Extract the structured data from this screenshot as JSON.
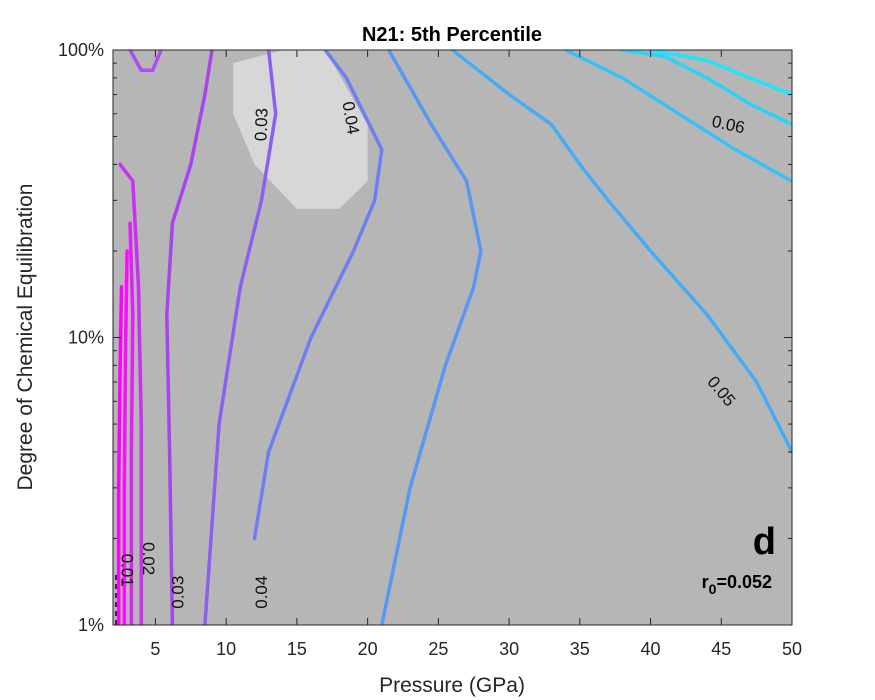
{
  "chart_data": {
    "type": "contour",
    "title": "N21: 5th Percentile",
    "xlabel": "Pressure (GPa)",
    "ylabel": "Degree of Chemical Equilibration",
    "xlim": [
      2,
      50
    ],
    "ylim": [
      1,
      100
    ],
    "yscale": "log",
    "xticks": [
      5,
      10,
      15,
      20,
      25,
      30,
      35,
      40,
      45,
      50
    ],
    "xtick_labels": [
      "5",
      "10",
      "15",
      "20",
      "25",
      "30",
      "35",
      "40",
      "45",
      "50"
    ],
    "yticks": [
      1,
      10,
      100
    ],
    "ytick_labels": [
      "1%",
      "10%",
      "100%"
    ],
    "panel_letter": "d",
    "r0_prefix": "r",
    "r0_sub": "0",
    "r0_value": "=0.052",
    "background_color": "#b6b6b6",
    "highlight_color": "#d7d7d7",
    "highlight_region": [
      [
        10.5,
        90
      ],
      [
        14,
        100
      ],
      [
        17,
        100
      ],
      [
        20,
        55
      ],
      [
        20,
        35
      ],
      [
        18,
        28
      ],
      [
        15,
        28
      ],
      [
        12,
        40
      ],
      [
        10.5,
        60
      ]
    ],
    "contours": [
      {
        "level": "0.01",
        "color": "#ff00ff",
        "points": [
          [
            2.4,
            1
          ],
          [
            2.4,
            3
          ],
          [
            2.5,
            8
          ],
          [
            2.6,
            15
          ]
        ]
      },
      {
        "level": "0.01",
        "color": "#f810fa",
        "points": [
          [
            2.8,
            1
          ],
          [
            2.8,
            3
          ],
          [
            2.9,
            10
          ],
          [
            3.0,
            20
          ]
        ]
      },
      {
        "level": "0.02",
        "color": "#e020f6",
        "points": [
          [
            3.3,
            1
          ],
          [
            3.3,
            4
          ],
          [
            3.4,
            12
          ],
          [
            3.2,
            25
          ]
        ]
      },
      {
        "level": "0.02",
        "color": "#c830f2",
        "points": [
          [
            4.0,
            1
          ],
          [
            4.0,
            5
          ],
          [
            3.8,
            15
          ],
          [
            3.4,
            35
          ],
          [
            2.5,
            40
          ]
        ]
      },
      {
        "level": "0.03",
        "color": "#a844ef",
        "points": [
          [
            6.2,
            1
          ],
          [
            6.0,
            4
          ],
          [
            5.8,
            12
          ],
          [
            6.2,
            25
          ],
          [
            7.5,
            40
          ],
          [
            8.5,
            70
          ],
          [
            9.0,
            100
          ]
        ]
      },
      {
        "level": "",
        "color": "#b04cf0",
        "points": [
          [
            3.2,
            100
          ],
          [
            4.0,
            85
          ],
          [
            4.8,
            85
          ],
          [
            5.4,
            100
          ]
        ]
      },
      {
        "level": "0.03",
        "color": "#8c60ee",
        "points": [
          [
            8.5,
            1
          ],
          [
            9.5,
            5
          ],
          [
            11.0,
            15
          ],
          [
            12.5,
            30
          ],
          [
            13.5,
            60
          ],
          [
            13.0,
            100
          ]
        ]
      },
      {
        "level": "0.04",
        "color": "#6e7ef2",
        "points": [
          [
            12.0,
            2
          ],
          [
            13.0,
            4
          ],
          [
            16.0,
            10
          ],
          [
            19.0,
            20
          ],
          [
            20.5,
            30
          ],
          [
            21.0,
            45
          ],
          [
            18.5,
            80
          ],
          [
            17.0,
            100
          ]
        ]
      },
      {
        "level": "0.04",
        "color": "#5a96f4",
        "points": [
          [
            21.0,
            1
          ],
          [
            23.0,
            3
          ],
          [
            25.5,
            8
          ],
          [
            27.5,
            15
          ],
          [
            28.0,
            20
          ],
          [
            27.0,
            35
          ],
          [
            24.5,
            55
          ],
          [
            21.5,
            100
          ]
        ]
      },
      {
        "level": "",
        "color": "#44acf6",
        "points": [
          [
            26.0,
            100
          ],
          [
            30.0,
            70
          ],
          [
            33.0,
            55
          ],
          [
            35.0,
            40
          ],
          [
            37.0,
            30
          ],
          [
            40.0,
            20
          ],
          [
            44.0,
            12
          ],
          [
            47.5,
            7
          ],
          [
            50.0,
            4
          ]
        ]
      },
      {
        "level": "",
        "color": "#36c2f8",
        "points": [
          [
            34.0,
            100
          ],
          [
            38.0,
            80
          ],
          [
            42.0,
            60
          ],
          [
            46.0,
            45
          ],
          [
            50.0,
            35
          ]
        ]
      },
      {
        "level": "",
        "color": "#2ad2fa",
        "points": [
          [
            38.0,
            100
          ],
          [
            41.0,
            95
          ],
          [
            44.0,
            80
          ],
          [
            47.0,
            65
          ],
          [
            50.0,
            55
          ]
        ]
      },
      {
        "level": "0.06",
        "color": "#1ee4fc",
        "points": [
          [
            40.0,
            100
          ],
          [
            44.0,
            92
          ],
          [
            47.0,
            80
          ],
          [
            50.0,
            70
          ]
        ]
      }
    ],
    "contour_labels": [
      {
        "text": "0.03",
        "x": 12.5,
        "y": 55,
        "rotate": -88
      },
      {
        "text": "0.04",
        "x": 18.8,
        "y": 58,
        "rotate": 80
      },
      {
        "text": "0.06",
        "x": 45.5,
        "y": 55,
        "rotate": 12
      },
      {
        "text": "0.05",
        "x": 45.0,
        "y": 6.5,
        "rotate": 50
      },
      {
        "text": "0.02",
        "x": 4.5,
        "y": 1.7,
        "rotate": 90
      },
      {
        "text": "0.01",
        "x": 3.0,
        "y": 1.55,
        "rotate": 90
      },
      {
        "text": "0.03",
        "x": 6.6,
        "y": 1.3,
        "rotate": -90
      },
      {
        "text": "0.04",
        "x": 12.5,
        "y": 1.3,
        "rotate": -90
      }
    ]
  }
}
